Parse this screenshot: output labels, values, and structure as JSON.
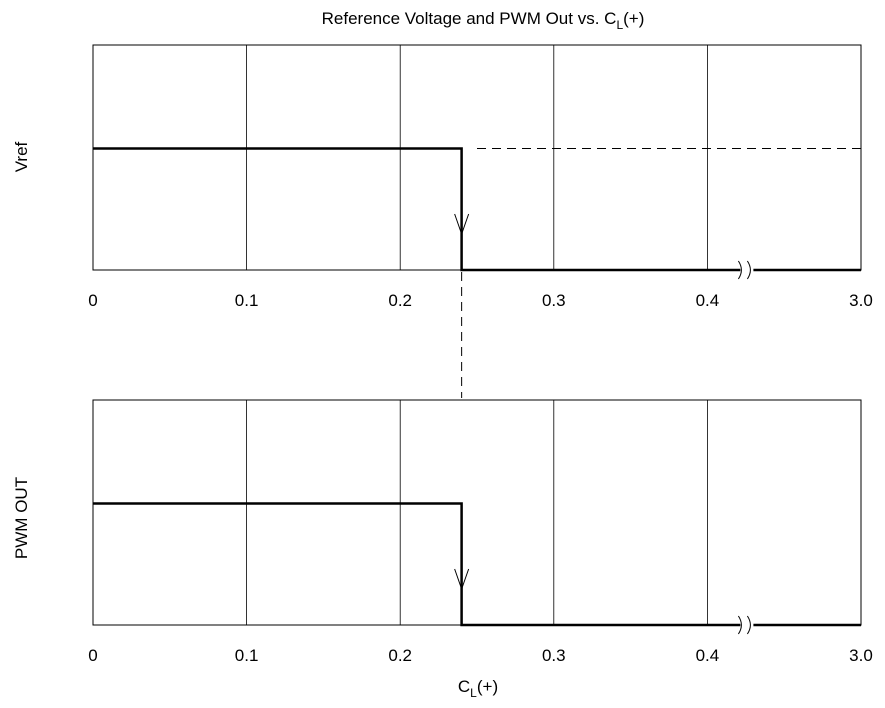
{
  "chart_data": [
    {
      "type": "line",
      "title": "Reference Voltage and PWM Out vs. C",
      "title_subscript": "L",
      "title_suffix": "(+)",
      "ylabel": "Vref",
      "xlabel": "",
      "x_tick_labels": [
        "0",
        "0.1",
        "0.2",
        "0.3",
        "0.4",
        "3.0"
      ],
      "x_axis_break": "between 0.4 and 3.0",
      "grid": true,
      "series": [
        {
          "x": [
            0,
            0.24,
            0.24,
            3.0
          ],
          "y": [
            1,
            1,
            0,
            0
          ],
          "style": "solid"
        }
      ],
      "dashed_reference": {
        "x": [
          0.25,
          3.0
        ],
        "y": [
          1,
          1
        ]
      },
      "arrow_at_x": 0.24
    },
    {
      "type": "line",
      "title": "",
      "ylabel": "PWM OUT",
      "xlabel": "C",
      "xlabel_subscript": "L",
      "xlabel_suffix": "(+)",
      "x_tick_labels": [
        "0",
        "0.1",
        "0.2",
        "0.3",
        "0.4",
        "3.0"
      ],
      "x_axis_break": "between 0.4 and 3.0",
      "grid": true,
      "series": [
        {
          "x": [
            0,
            0.24,
            0.24,
            3.0
          ],
          "y": [
            1,
            1,
            0,
            0
          ],
          "style": "solid"
        }
      ],
      "arrow_at_x": 0.24
    }
  ]
}
